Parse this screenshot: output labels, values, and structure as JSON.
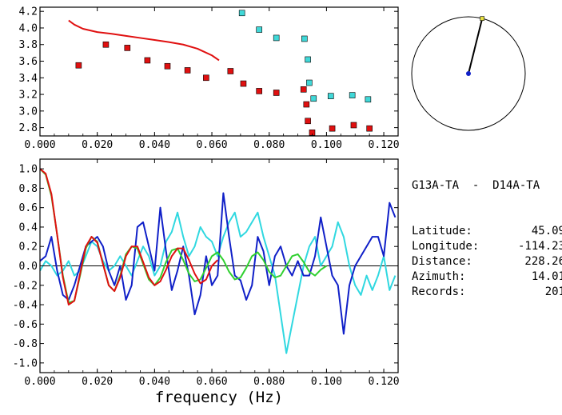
{
  "colors": {
    "phase_points": "#e01010",
    "group_points": "#40d8d8",
    "model_curve": "#e01010",
    "observed_blue": "#1020c8",
    "observed_cyan": "#30d8e0",
    "model_red": "#e01010",
    "model_green": "#30d030",
    "azimuth_line": "#000000",
    "station_dot": "#1020c8",
    "event_marker": "#e8e040"
  },
  "info": {
    "pair": "G13A-TA  -  D14A-TA",
    "rows": [
      {
        "label": "Latitude:",
        "value": "45.09"
      },
      {
        "label": "Longitude:",
        "value": "-114.23"
      },
      {
        "label": "Distance:",
        "value": "228.26"
      },
      {
        "label": "Azimuth:",
        "value": "14.01"
      },
      {
        "label": "Records:",
        "value": "201"
      }
    ]
  },
  "chart_data": [
    {
      "type": "scatter",
      "panel": "velocity",
      "xlim": [
        0.0,
        0.125
      ],
      "ylim": [
        2.7,
        4.25
      ],
      "x_ticks": [
        "0.000",
        "0.020",
        "0.040",
        "0.060",
        "0.080",
        "0.100",
        "0.120"
      ],
      "x_tick_values": [
        0.0,
        0.02,
        0.04,
        0.06,
        0.08,
        0.1,
        0.12
      ],
      "y_ticks": [
        "2.8",
        "3.0",
        "3.2",
        "3.4",
        "3.6",
        "3.8",
        "4.0",
        "4.2"
      ],
      "y_tick_values": [
        2.8,
        3.0,
        3.2,
        3.4,
        3.6,
        3.8,
        4.0,
        4.2
      ],
      "series": [
        {
          "kind": "points",
          "color_key": "phase_points",
          "x": [
            0.0135,
            0.023,
            0.0305,
            0.0375,
            0.0445,
            0.0515,
            0.058,
            0.0665,
            0.071,
            0.0765,
            0.0825,
            0.092,
            0.093,
            0.0935,
            0.095,
            0.102,
            0.1095,
            0.115
          ],
          "y": [
            3.55,
            3.8,
            3.76,
            3.61,
            3.54,
            3.49,
            3.4,
            3.48,
            3.33,
            3.24,
            3.22,
            3.26,
            3.08,
            2.88,
            2.74,
            2.79,
            2.83,
            2.79
          ]
        },
        {
          "kind": "points",
          "color_key": "group_points",
          "x": [
            0.0705,
            0.0765,
            0.0825,
            0.0923,
            0.0935,
            0.094,
            0.0955,
            0.1015,
            0.109,
            0.1145
          ],
          "y": [
            4.18,
            3.98,
            3.88,
            3.87,
            3.62,
            3.34,
            3.15,
            3.18,
            3.19,
            3.14
          ]
        },
        {
          "kind": "line",
          "color_key": "model_curve",
          "x": [
            0.01,
            0.012,
            0.015,
            0.02,
            0.025,
            0.03,
            0.035,
            0.04,
            0.045,
            0.05,
            0.055,
            0.06,
            0.0625
          ],
          "y": [
            4.09,
            4.04,
            3.99,
            3.95,
            3.93,
            3.905,
            3.88,
            3.855,
            3.83,
            3.8,
            3.75,
            3.67,
            3.61
          ]
        }
      ]
    },
    {
      "type": "line",
      "panel": "coherence",
      "xlabel": "frequency  (Hz)",
      "xlim": [
        0.0,
        0.125
      ],
      "ylim": [
        -1.1,
        1.1
      ],
      "x_ticks": [
        "0.000",
        "0.020",
        "0.040",
        "0.060",
        "0.080",
        "0.100",
        "0.120"
      ],
      "x_tick_values": [
        0.0,
        0.02,
        0.04,
        0.06,
        0.08,
        0.1,
        0.12
      ],
      "y_ticks": [
        "1.0",
        "0.8",
        "0.6",
        "0.4",
        "0.2",
        "0.0",
        "-0.2",
        "-0.4",
        "-0.6",
        "-0.8",
        "-1.0"
      ],
      "y_tick_values": [
        1.0,
        0.8,
        0.6,
        0.4,
        0.2,
        0.0,
        -0.2,
        -0.4,
        -0.6,
        -0.8,
        -1.0
      ],
      "series": [
        {
          "color_key": "observed_cyan",
          "x": [
            0.0,
            0.002,
            0.004,
            0.006,
            0.008,
            0.01,
            0.012,
            0.014,
            0.016,
            0.018,
            0.02,
            0.022,
            0.024,
            0.026,
            0.028,
            0.03,
            0.032,
            0.034,
            0.036,
            0.038,
            0.04,
            0.042,
            0.044,
            0.046,
            0.048,
            0.05,
            0.052,
            0.054,
            0.056,
            0.058,
            0.06,
            0.062,
            0.064,
            0.066,
            0.068,
            0.07,
            0.072,
            0.074,
            0.076,
            0.078,
            0.08,
            0.082,
            0.084,
            0.086,
            0.088,
            0.09,
            0.092,
            0.094,
            0.096,
            0.098,
            0.1,
            0.102,
            0.104,
            0.106,
            0.108,
            0.11,
            0.112,
            0.114,
            0.116,
            0.118,
            0.12,
            0.122,
            0.124
          ],
          "y": [
            -0.05,
            0.05,
            0.0,
            -0.1,
            -0.05,
            0.05,
            -0.1,
            -0.05,
            0.1,
            0.25,
            0.2,
            0.05,
            -0.05,
            0.0,
            0.1,
            0.0,
            -0.1,
            0.05,
            0.2,
            0.1,
            -0.1,
            0.0,
            0.25,
            0.35,
            0.55,
            0.3,
            0.1,
            0.2,
            0.4,
            0.3,
            0.25,
            0.1,
            0.3,
            0.45,
            0.55,
            0.3,
            0.35,
            0.45,
            0.55,
            0.3,
            0.1,
            -0.1,
            -0.5,
            -0.9,
            -0.6,
            -0.3,
            0.0,
            0.2,
            0.3,
            0.0,
            0.1,
            0.2,
            0.45,
            0.3,
            0.0,
            -0.2,
            -0.3,
            -0.1,
            -0.25,
            -0.1,
            0.1,
            -0.25,
            -0.1
          ]
        },
        {
          "color_key": "observed_blue",
          "x": [
            0.0,
            0.002,
            0.004,
            0.006,
            0.008,
            0.01,
            0.012,
            0.014,
            0.016,
            0.018,
            0.02,
            0.022,
            0.024,
            0.026,
            0.028,
            0.03,
            0.032,
            0.034,
            0.036,
            0.038,
            0.04,
            0.042,
            0.044,
            0.046,
            0.048,
            0.05,
            0.052,
            0.054,
            0.056,
            0.058,
            0.06,
            0.062,
            0.064,
            0.066,
            0.068,
            0.07,
            0.072,
            0.074,
            0.076,
            0.078,
            0.08,
            0.082,
            0.084,
            0.086,
            0.088,
            0.09,
            0.092,
            0.094,
            0.096,
            0.098,
            0.1,
            0.102,
            0.104,
            0.106,
            0.108,
            0.11,
            0.112,
            0.114,
            0.116,
            0.118,
            0.12,
            0.122,
            0.124
          ],
          "y": [
            0.05,
            0.1,
            0.3,
            -0.05,
            -0.3,
            -0.35,
            -0.2,
            0.0,
            0.2,
            0.25,
            0.3,
            0.2,
            -0.05,
            -0.2,
            0.0,
            -0.35,
            -0.2,
            0.4,
            0.45,
            0.2,
            -0.05,
            0.6,
            0.15,
            -0.25,
            -0.05,
            0.2,
            -0.1,
            -0.5,
            -0.3,
            0.1,
            -0.2,
            -0.1,
            0.75,
            0.3,
            -0.1,
            -0.15,
            -0.35,
            -0.2,
            0.3,
            0.15,
            -0.2,
            0.1,
            0.2,
            0.0,
            -0.1,
            0.05,
            -0.1,
            -0.1,
            0.1,
            0.5,
            0.2,
            -0.1,
            -0.2,
            -0.7,
            -0.2,
            0.0,
            0.1,
            0.2,
            0.3,
            0.3,
            0.1,
            0.65,
            0.5
          ]
        },
        {
          "color_key": "model_green",
          "x": [
            0.0,
            0.002,
            0.004,
            0.006,
            0.008,
            0.01,
            0.012,
            0.014,
            0.016,
            0.018,
            0.02,
            0.022,
            0.024,
            0.026,
            0.028,
            0.03,
            0.032,
            0.034,
            0.036,
            0.038,
            0.04,
            0.042,
            0.044,
            0.046,
            0.048,
            0.05,
            0.052,
            0.054,
            0.056,
            0.058,
            0.06,
            0.062,
            0.064,
            0.066,
            0.068,
            0.07,
            0.072,
            0.074,
            0.076,
            0.078,
            0.08,
            0.082,
            0.084,
            0.086,
            0.088,
            0.09,
            0.092,
            0.094,
            0.096,
            0.098,
            0.1
          ],
          "y": [
            1.0,
            0.94,
            0.72,
            0.32,
            -0.1,
            -0.38,
            -0.36,
            -0.1,
            0.18,
            0.3,
            0.25,
            0.02,
            -0.2,
            -0.26,
            -0.1,
            0.12,
            0.2,
            0.18,
            0.02,
            -0.14,
            -0.2,
            -0.12,
            0.04,
            0.16,
            0.18,
            0.06,
            -0.08,
            -0.16,
            -0.14,
            -0.02,
            0.1,
            0.14,
            0.06,
            -0.06,
            -0.14,
            -0.12,
            -0.02,
            0.1,
            0.14,
            0.06,
            -0.06,
            -0.12,
            -0.1,
            0.0,
            0.1,
            0.12,
            0.04,
            -0.06,
            -0.1,
            -0.04,
            0.0
          ]
        },
        {
          "color_key": "model_red",
          "x": [
            0.0,
            0.002,
            0.004,
            0.006,
            0.008,
            0.01,
            0.012,
            0.014,
            0.016,
            0.018,
            0.02,
            0.022,
            0.024,
            0.026,
            0.028,
            0.03,
            0.032,
            0.034,
            0.036,
            0.038,
            0.04,
            0.042,
            0.044,
            0.046,
            0.048,
            0.05,
            0.052,
            0.054,
            0.056,
            0.058,
            0.06,
            0.062
          ],
          "y": [
            1.0,
            0.95,
            0.74,
            0.32,
            -0.12,
            -0.4,
            -0.36,
            -0.08,
            0.2,
            0.3,
            0.24,
            0.02,
            -0.2,
            -0.26,
            -0.12,
            0.1,
            0.2,
            0.2,
            0.04,
            -0.12,
            -0.2,
            -0.16,
            -0.04,
            0.1,
            0.18,
            0.18,
            0.06,
            -0.08,
            -0.18,
            -0.14,
            0.0,
            0.06
          ]
        }
      ]
    }
  ],
  "azimuth_plot": {
    "azimuth_deg": 14.01
  }
}
